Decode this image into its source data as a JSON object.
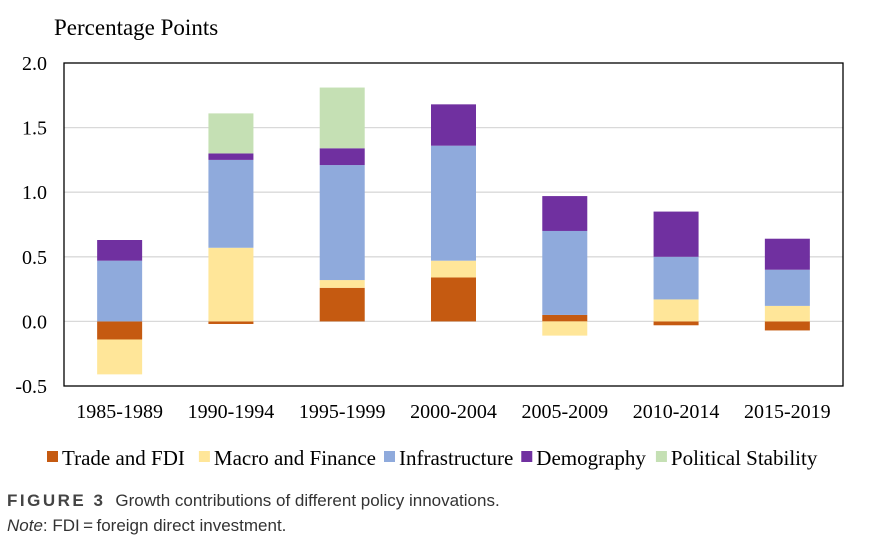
{
  "chart_data": {
    "type": "bar",
    "stacked": true,
    "ylabel": "Percentage Points",
    "ylim": [
      -0.5,
      2.0
    ],
    "yticks": [
      "2.0",
      "1.5",
      "1.0",
      "0.5",
      "0.0",
      "-0.5"
    ],
    "ytick_values": [
      2.0,
      1.5,
      1.0,
      0.5,
      0.0,
      -0.5
    ],
    "grid": true,
    "legend_position": "bottom",
    "categories": [
      "1985-1989",
      "1990-1994",
      "1995-1999",
      "2000-2004",
      "2005-2009",
      "2010-2014",
      "2015-2019"
    ],
    "series": [
      {
        "name": "Trade and FDI",
        "color": "#C55A11",
        "values": [
          -0.14,
          -0.02,
          0.26,
          0.34,
          0.05,
          -0.03,
          -0.07
        ]
      },
      {
        "name": "Macro and Finance",
        "color": "#FFE699",
        "values": [
          -0.27,
          0.57,
          0.06,
          0.13,
          -0.11,
          0.17,
          0.12
        ]
      },
      {
        "name": "Infrastructure",
        "color": "#8FAADC",
        "values": [
          0.47,
          0.68,
          0.89,
          0.89,
          0.65,
          0.33,
          0.28
        ]
      },
      {
        "name": "Demography",
        "color": "#7030A0",
        "values": [
          0.16,
          0.05,
          0.13,
          0.32,
          0.27,
          0.35,
          0.24
        ]
      },
      {
        "name": "Political Stability",
        "color": "#C5E0B4",
        "values": [
          0.0,
          0.31,
          0.47,
          0.0,
          0.0,
          0.0,
          0.0
        ]
      }
    ]
  },
  "caption": {
    "figure_label": "FIGURE 3",
    "text": "Growth contributions of different policy innovations.",
    "note_label": "Note",
    "note_text": ": FDI = foreign direct investment."
  }
}
